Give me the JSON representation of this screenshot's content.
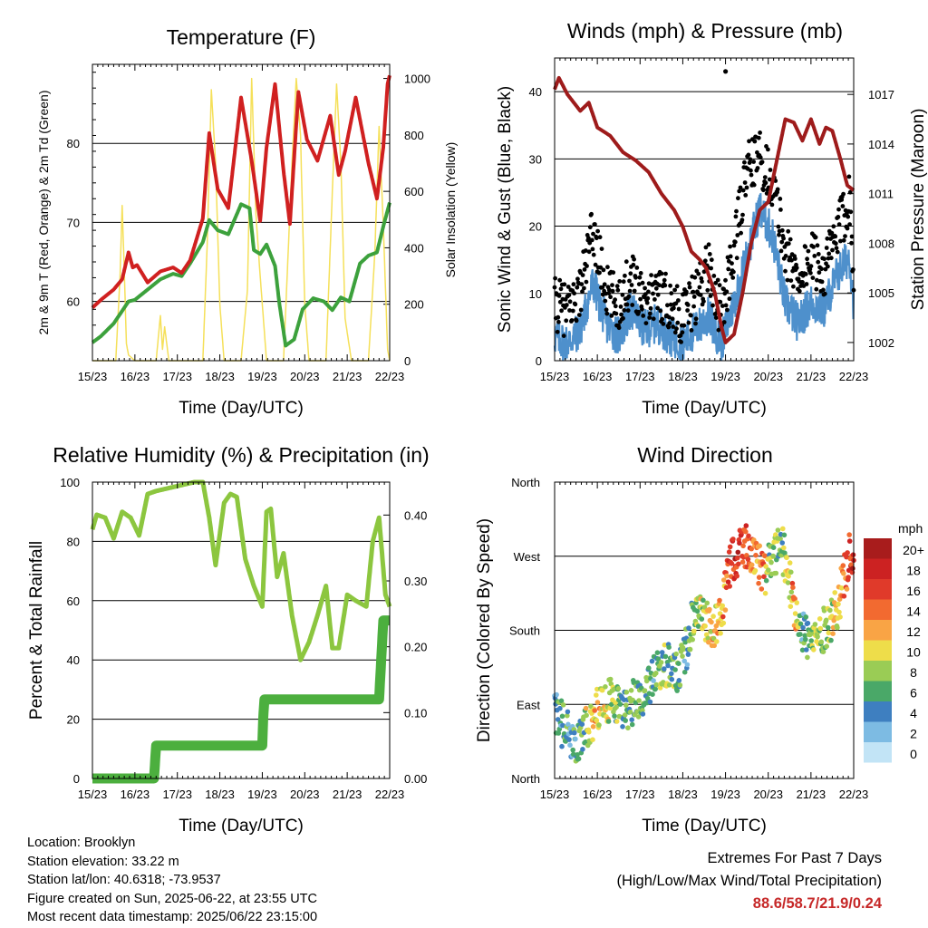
{
  "chart_data": [
    {
      "type": "line",
      "title": "Temperature (F)",
      "xlabel": "Time (Day/UTC)",
      "ylabel": "2m & 9m T (Red, Orange) & 2m Td (Green)",
      "y2label": "Solar Insolation (Yellow)",
      "x_ticks": [
        "15/23",
        "16/23",
        "17/23",
        "18/23",
        "19/23",
        "20/23",
        "21/23",
        "22/23"
      ],
      "xlim": [
        0,
        7
      ],
      "ylim": [
        52.5,
        90
      ],
      "y_ticks": [
        "60",
        "70",
        "80"
      ],
      "y2lim": [
        0,
        1050
      ],
      "y2_ticks": [
        "0",
        "200",
        "400",
        "600",
        "800",
        "1000"
      ],
      "series": [
        {
          "name": "2m T",
          "color": "#d02020",
          "x": [
            0,
            0.2,
            0.5,
            0.7,
            0.85,
            0.95,
            1.05,
            1.3,
            1.6,
            1.9,
            2.1,
            2.3,
            2.6,
            2.75,
            2.95,
            3.2,
            3.5,
            3.75,
            3.95,
            4.1,
            4.3,
            4.5,
            4.65,
            4.85,
            5.05,
            5.3,
            5.6,
            5.8,
            5.95,
            6.2,
            6.5,
            6.7,
            6.85,
            6.95,
            7.0
          ],
          "y": [
            59.2,
            60.2,
            61.5,
            62.8,
            66.2,
            64.3,
            64.6,
            62.4,
            63.8,
            64.3,
            63.6,
            65.2,
            70.5,
            81.3,
            74.2,
            71.8,
            85.8,
            77.8,
            70.2,
            79.5,
            87.5,
            76.5,
            69.8,
            86.5,
            80.5,
            77.8,
            83.5,
            76.0,
            79.0,
            85.8,
            77.5,
            73.0,
            79.5,
            87.5,
            88.6
          ]
        },
        {
          "name": "2m Td",
          "color": "#3ca13c",
          "x": [
            0,
            0.2,
            0.5,
            0.7,
            0.85,
            1.0,
            1.3,
            1.6,
            1.9,
            2.1,
            2.3,
            2.6,
            2.75,
            2.95,
            3.2,
            3.5,
            3.7,
            3.8,
            3.95,
            4.1,
            4.3,
            4.4,
            4.55,
            4.75,
            4.95,
            5.2,
            5.45,
            5.65,
            5.85,
            6.05,
            6.3,
            6.5,
            6.7,
            6.85,
            7.0
          ],
          "y": [
            54.8,
            55.6,
            57.2,
            58.8,
            60.0,
            60.2,
            61.5,
            62.8,
            63.5,
            63.2,
            64.8,
            67.5,
            70.3,
            69.0,
            68.5,
            72.3,
            71.8,
            66.5,
            66.0,
            67.2,
            64.5,
            59.8,
            54.4,
            55.2,
            59.0,
            60.4,
            60.0,
            58.9,
            60.5,
            60.0,
            64.8,
            65.8,
            66.2,
            69.5,
            72.5
          ]
        },
        {
          "name": "Solar",
          "color": "#f5e05a",
          "axis": "y2",
          "x": [
            0,
            0.55,
            0.65,
            0.7,
            0.75,
            0.8,
            0.85,
            1.0,
            1.5,
            1.6,
            1.65,
            1.7,
            1.8,
            2.0,
            2.6,
            2.7,
            2.8,
            2.9,
            3.0,
            3.1,
            3.5,
            3.65,
            3.75,
            3.85,
            3.95,
            4.1,
            4.5,
            4.7,
            4.8,
            4.9,
            5.0,
            5.1,
            5.5,
            5.65,
            5.75,
            5.85,
            5.95,
            6.1,
            6.5,
            6.65,
            6.75,
            6.85,
            6.95,
            7.0
          ],
          "y": [
            0,
            0,
            300,
            550,
            320,
            60,
            20,
            0,
            0,
            160,
            40,
            120,
            0,
            0,
            0,
            400,
            960,
            700,
            200,
            0,
            0,
            250,
            1000,
            520,
            300,
            0,
            0,
            700,
            1000,
            800,
            200,
            0,
            0,
            600,
            980,
            700,
            150,
            0,
            0,
            380,
            830,
            480,
            40,
            0
          ]
        }
      ]
    },
    {
      "type": "line",
      "title": "Winds (mph) & Pressure (mb)",
      "xlabel": "Time (Day/UTC)",
      "ylabel": "Sonic Wind & Gust (Blue, Black)",
      "y2label": "Station Pressure (Maroon)",
      "x_ticks": [
        "15/23",
        "16/23",
        "17/23",
        "18/23",
        "19/23",
        "20/23",
        "21/23",
        "22/23"
      ],
      "xlim": [
        0,
        7
      ],
      "ylim": [
        0,
        45
      ],
      "y_ticks": [
        "0",
        "10",
        "20",
        "30",
        "40"
      ],
      "y2lim": [
        1000.9,
        1019.2
      ],
      "y2_ticks": [
        "1002",
        "1005",
        "1008",
        "1011",
        "1014",
        "1017"
      ],
      "series": [
        {
          "name": "Pressure",
          "color": "#9e1b1b",
          "axis": "y2",
          "x": [
            0,
            0.1,
            0.3,
            0.6,
            0.8,
            1.0,
            1.3,
            1.6,
            1.9,
            2.2,
            2.5,
            2.8,
            3.0,
            3.2,
            3.4,
            3.55,
            3.75,
            3.9,
            4.0,
            4.2,
            4.4,
            4.6,
            4.8,
            5.0,
            5.2,
            5.4,
            5.6,
            5.8,
            6.0,
            6.2,
            6.35,
            6.5,
            6.7,
            6.85,
            7.0
          ],
          "y": [
            1017.3,
            1018.0,
            1017.0,
            1016.0,
            1016.5,
            1015.0,
            1014.5,
            1013.5,
            1013.0,
            1012.3,
            1011.0,
            1010.0,
            1009.0,
            1007.5,
            1007.0,
            1006.5,
            1005.0,
            1003.0,
            1002.0,
            1002.5,
            1005.0,
            1008.0,
            1010.0,
            1010.5,
            1013.0,
            1015.5,
            1015.3,
            1014.2,
            1015.5,
            1014.0,
            1015.0,
            1014.8,
            1013.0,
            1011.5,
            1011.2
          ]
        },
        {
          "name": "Wind",
          "color": "#4e90cc",
          "x": [
            0,
            0.3,
            0.6,
            0.9,
            1.2,
            1.5,
            1.8,
            2.1,
            2.4,
            2.7,
            3.0,
            3.3,
            3.6,
            3.9,
            4.2,
            4.5,
            4.8,
            5.1,
            5.4,
            5.7,
            6.0,
            6.3,
            6.6,
            6.9,
            7.0
          ],
          "y": [
            3,
            2,
            4,
            11,
            5,
            3,
            7,
            4,
            5,
            3,
            2,
            4,
            6,
            2,
            8,
            15,
            22,
            18,
            8,
            5,
            8,
            7,
            12,
            15,
            8
          ]
        },
        {
          "name": "Gust",
          "color": "#000000",
          "x": [
            0,
            0.3,
            0.6,
            0.9,
            1.2,
            1.5,
            1.8,
            2.1,
            2.4,
            2.7,
            3.0,
            3.3,
            3.6,
            3.9,
            4.2,
            4.5,
            4.8,
            5.1,
            5.4,
            5.7,
            6.0,
            6.3,
            6.6,
            6.9,
            7.0
          ],
          "y": [
            8,
            7,
            10,
            19,
            10,
            8,
            12,
            9,
            10,
            8,
            6,
            9,
            14,
            6,
            16,
            28,
            30,
            26,
            16,
            12,
            15,
            13,
            18,
            24,
            14
          ]
        }
      ]
    },
    {
      "type": "line",
      "title": "Relative Humidity (%) & Precipitation (in)",
      "xlabel": "Time (Day/UTC)",
      "ylabel": "Percent & Total Rainfall",
      "x_ticks": [
        "15/23",
        "16/23",
        "17/23",
        "18/23",
        "19/23",
        "20/23",
        "21/23",
        "22/23"
      ],
      "xlim": [
        0,
        7
      ],
      "ylim": [
        0,
        100
      ],
      "y_ticks": [
        "0",
        "20",
        "40",
        "60",
        "80",
        "100"
      ],
      "y2lim": [
        0,
        0.45
      ],
      "y2_ticks": [
        "0.00",
        "0.10",
        "0.20",
        "0.30",
        "0.40"
      ],
      "series": [
        {
          "name": "RH",
          "color": "#8cc63f",
          "x": [
            0,
            0.1,
            0.3,
            0.5,
            0.7,
            0.9,
            1.1,
            1.3,
            1.5,
            1.8,
            2.1,
            2.4,
            2.6,
            2.75,
            2.9,
            3.1,
            3.25,
            3.4,
            3.6,
            3.8,
            4.0,
            4.1,
            4.2,
            4.35,
            4.5,
            4.7,
            4.9,
            5.1,
            5.3,
            5.5,
            5.65,
            5.8,
            6.0,
            6.2,
            6.45,
            6.6,
            6.75,
            6.9,
            7.0
          ],
          "y": [
            84,
            89,
            88,
            81,
            90,
            88,
            82,
            96,
            97,
            98,
            99,
            100,
            100,
            88,
            72,
            93,
            96,
            95,
            74,
            65,
            58,
            90,
            91,
            68,
            76,
            55,
            40,
            46,
            55,
            65,
            44,
            44,
            62,
            60,
            58,
            80,
            88,
            62,
            58
          ]
        },
        {
          "name": "Rainfall",
          "color": "#4caf3e",
          "axis": "y2",
          "x": [
            0,
            1.45,
            1.5,
            4.0,
            4.02,
            4.05,
            6.75,
            6.8,
            6.85,
            7.0
          ],
          "y": [
            0,
            0,
            0.05,
            0.05,
            0.09,
            0.12,
            0.12,
            0.18,
            0.24,
            0.24
          ]
        }
      ]
    },
    {
      "type": "scatter",
      "title": "Wind Direction",
      "xlabel": "Time (Day/UTC)",
      "ylabel": "Direction (Colored By Speed)",
      "x_ticks": [
        "15/23",
        "16/23",
        "17/23",
        "18/23",
        "19/23",
        "20/23",
        "21/23",
        "22/23"
      ],
      "xlim": [
        0,
        7
      ],
      "y_ticks": [
        "North",
        "East",
        "South",
        "West",
        "North"
      ],
      "ylim": [
        0,
        360
      ],
      "legend_title": "mph",
      "legend_labels": [
        "20+",
        "18",
        "16",
        "14",
        "12",
        "10",
        "8",
        "6",
        "4",
        "2",
        "0"
      ],
      "legend_colors": [
        "#a81c1c",
        "#cc2222",
        "#e03a2a",
        "#f26a30",
        "#f9a445",
        "#eedd4a",
        "#9acc55",
        "#4aa868",
        "#3e7fc0",
        "#7dbbe3",
        "#c2e4f6"
      ],
      "direction_trend": {
        "x": [
          0,
          0.3,
          0.6,
          1.0,
          1.3,
          1.6,
          2.0,
          2.3,
          2.6,
          2.9,
          3.1,
          3.3,
          3.5,
          3.75,
          3.9,
          4.1,
          4.3,
          4.5,
          4.7,
          4.9,
          5.0,
          5.1,
          5.3,
          5.5,
          5.6,
          5.8,
          6.0,
          6.3,
          6.6,
          6.9,
          7.0
        ],
        "dir": [
          80,
          55,
          45,
          85,
          95,
          80,
          100,
          120,
          140,
          130,
          160,
          210,
          190,
          180,
          195,
          260,
          275,
          280,
          275,
          245,
          255,
          265,
          285,
          240,
          215,
          180,
          165,
          180,
          205,
          270,
          275
        ],
        "speed": [
          4,
          5,
          6,
          12,
          8,
          6,
          6,
          5,
          7,
          6,
          5,
          8,
          9,
          11,
          12,
          16,
          18,
          16,
          12,
          14,
          6,
          8,
          6,
          9,
          14,
          4,
          8,
          8,
          10,
          16,
          18
        ]
      }
    }
  ],
  "info": {
    "location": "Location: Brooklyn",
    "elevation": "Station elevation: 33.22 m",
    "latlon": "Station lat/lon: 40.6318; -73.9537",
    "created": "Figure created on Sun, 2025-06-22, at 23:55 UTC",
    "recent": "Most recent data timestamp: 2025/06/22 23:15:00"
  },
  "extremes": {
    "title": "Extremes For Past 7 Days",
    "subtitle": "(High/Low/Max Wind/Total Precipitation)",
    "values": "88.6/58.7/21.9/0.24"
  }
}
